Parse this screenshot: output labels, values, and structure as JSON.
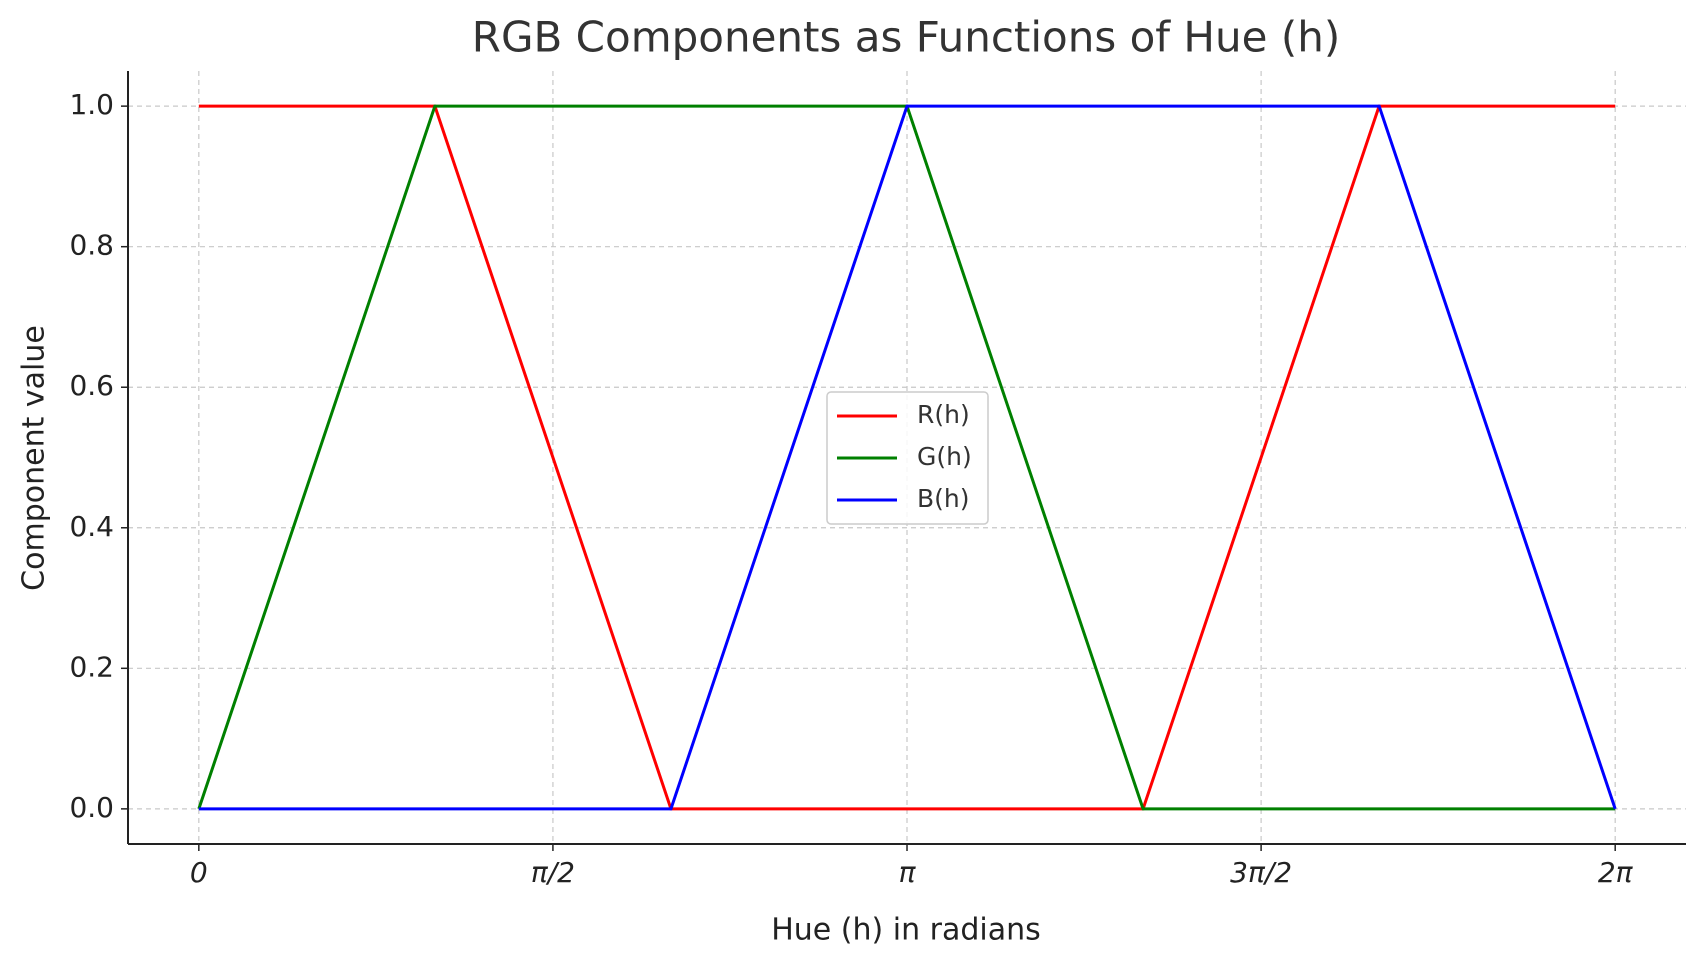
{
  "chart_data": {
    "type": "line",
    "title": "RGB Components as Functions of Hue (h)",
    "x_label": "Hue (h) in radians",
    "y_label": "Component value",
    "x": [
      0,
      1.0472,
      2.0944,
      3.1416,
      4.1888,
      5.236,
      6.2832
    ],
    "series": [
      {
        "name": "R(h)",
        "color": "#ff0000",
        "values": [
          1,
          1,
          0,
          0,
          0,
          1,
          1
        ]
      },
      {
        "name": "G(h)",
        "color": "#008000",
        "values": [
          0,
          1,
          1,
          1,
          0,
          0,
          0
        ]
      },
      {
        "name": "B(h)",
        "color": "#0000ff",
        "values": [
          0,
          0,
          0,
          1,
          1,
          1,
          0
        ]
      }
    ],
    "xlim": [
      -0.3142,
      6.5973
    ],
    "ylim": [
      -0.05,
      1.05
    ],
    "xticks": [
      {
        "value": 0,
        "label": "0"
      },
      {
        "value": 1.5708,
        "label": "π/2"
      },
      {
        "value": 3.1416,
        "label": "π"
      },
      {
        "value": 4.7124,
        "label": "3π/2"
      },
      {
        "value": 6.2832,
        "label": "2π"
      }
    ],
    "yticks": [
      {
        "value": 0,
        "label": "0.0"
      },
      0.2,
      0.4,
      0.6,
      0.8,
      {
        "value": 1,
        "label": "1.0"
      }
    ],
    "grid": true,
    "legend": "center"
  }
}
